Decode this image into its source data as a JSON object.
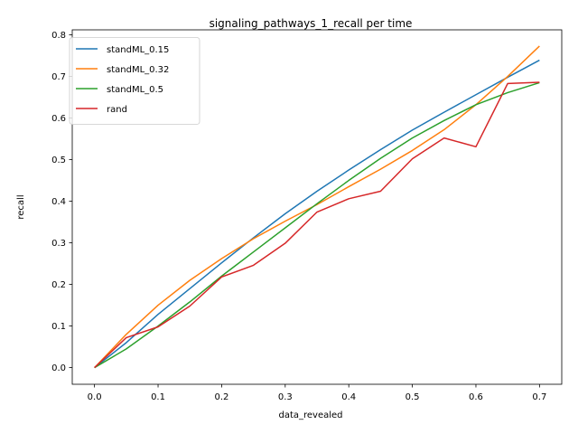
{
  "chart_data": {
    "type": "line",
    "title": "signaling_pathways_1_recall per time",
    "xlabel": "data_revealed",
    "ylabel": "recall",
    "x": [
      0.0,
      0.05,
      0.1,
      0.15,
      0.2,
      0.25,
      0.3,
      0.35,
      0.4,
      0.45,
      0.5,
      0.55,
      0.6,
      0.65,
      0.7
    ],
    "xlim": [
      -0.035,
      0.735
    ],
    "ylim": [
      -0.04,
      0.812
    ],
    "xticks": [
      "0.0",
      "0.1",
      "0.2",
      "0.3",
      "0.4",
      "0.5",
      "0.6",
      "0.7"
    ],
    "xtick_values": [
      0.0,
      0.1,
      0.2,
      0.3,
      0.4,
      0.5,
      0.6,
      0.7
    ],
    "yticks": [
      "0.0",
      "0.1",
      "0.2",
      "0.3",
      "0.4",
      "0.5",
      "0.6",
      "0.7",
      "0.8"
    ],
    "ytick_values": [
      0.0,
      0.1,
      0.2,
      0.3,
      0.4,
      0.5,
      0.6,
      0.7,
      0.8
    ],
    "legend_position": "top-left",
    "grid": false,
    "series": [
      {
        "name": "standML_0.15",
        "color": "#1f77b4",
        "values": [
          0.0,
          0.06,
          0.128,
          0.19,
          0.252,
          0.312,
          0.37,
          0.424,
          0.475,
          0.524,
          0.571,
          0.614,
          0.656,
          0.698,
          0.739
        ]
      },
      {
        "name": "standML_0.32",
        "color": "#ff7f0e",
        "values": [
          0.0,
          0.08,
          0.15,
          0.21,
          0.262,
          0.31,
          0.352,
          0.392,
          0.435,
          0.477,
          0.522,
          0.572,
          0.632,
          0.7,
          0.773
        ]
      },
      {
        "name": "standML_0.5",
        "color": "#2ca02c",
        "values": [
          0.0,
          0.045,
          0.1,
          0.158,
          0.22,
          0.278,
          0.336,
          0.394,
          0.45,
          0.503,
          0.552,
          0.594,
          0.632,
          0.661,
          0.685
        ]
      },
      {
        "name": "rand",
        "color": "#d62728",
        "values": [
          0.0,
          0.072,
          0.098,
          0.148,
          0.218,
          0.246,
          0.299,
          0.374,
          0.406,
          0.424,
          0.502,
          0.552,
          0.531,
          0.683,
          0.686
        ]
      }
    ]
  }
}
